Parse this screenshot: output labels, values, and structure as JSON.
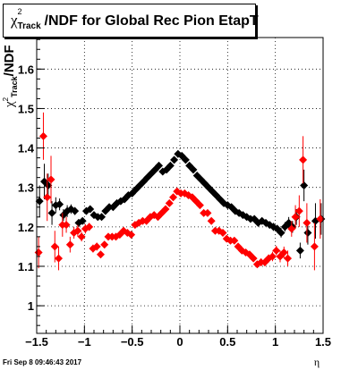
{
  "footer_text": "Fri Sep  8 09:46:43 2017",
  "chart_data": {
    "type": "scatter",
    "title": "/NDF for Global Rec Pion EtapT",
    "title_symbol": "χ",
    "title_superscript": "2",
    "title_subscript": "Track",
    "xlabel": "η",
    "ylabel": "/NDF",
    "ylabel_symbol": "χ",
    "ylabel_superscript": "2",
    "ylabel_subscript": "Track",
    "xlim": [
      -1.5,
      1.5
    ],
    "ylim": [
      0.93,
      1.68
    ],
    "xticks": [
      "−1.5",
      "−1",
      "−0.5",
      "0",
      "0.5",
      "1",
      "1.5"
    ],
    "yticks": [
      "1",
      "1.1",
      "1.2",
      "1.3",
      "1.4",
      "1.5",
      "1.6"
    ],
    "grid": true,
    "series": [
      {
        "color": "#000000",
        "points": [
          [
            -1.47,
            1.265,
            0.04
          ],
          [
            -1.42,
            1.315,
            0.045
          ],
          [
            -1.38,
            1.305,
            0.03
          ],
          [
            -1.34,
            1.235,
            0.03
          ],
          [
            -1.3,
            1.255,
            0.02
          ],
          [
            -1.26,
            1.257,
            0.015
          ],
          [
            -1.22,
            1.23,
            0.015
          ],
          [
            -1.18,
            1.24,
            0.015
          ],
          [
            -1.14,
            1.245,
            0.012
          ],
          [
            -1.1,
            1.24,
            0.01
          ],
          [
            -1.06,
            1.21,
            0.01
          ],
          [
            -1.02,
            1.215,
            0.008
          ],
          [
            -0.98,
            1.24,
            0.008
          ],
          [
            -0.94,
            1.245,
            0.008
          ],
          [
            -0.9,
            1.23,
            0.007
          ],
          [
            -0.86,
            1.225,
            0.007
          ],
          [
            -0.82,
            1.225,
            0.007
          ],
          [
            -0.78,
            1.24,
            0.007
          ],
          [
            -0.74,
            1.25,
            0.006
          ],
          [
            -0.7,
            1.25,
            0.006
          ],
          [
            -0.66,
            1.26,
            0.006
          ],
          [
            -0.62,
            1.265,
            0.006
          ],
          [
            -0.58,
            1.27,
            0.006
          ],
          [
            -0.54,
            1.28,
            0.006
          ],
          [
            -0.5,
            1.285,
            0.006
          ],
          [
            -0.46,
            1.295,
            0.006
          ],
          [
            -0.42,
            1.305,
            0.006
          ],
          [
            -0.38,
            1.315,
            0.006
          ],
          [
            -0.34,
            1.325,
            0.006
          ],
          [
            -0.3,
            1.335,
            0.006
          ],
          [
            -0.26,
            1.345,
            0.006
          ],
          [
            -0.22,
            1.355,
            0.006
          ],
          [
            -0.18,
            1.34,
            0.006
          ],
          [
            -0.14,
            1.345,
            0.006
          ],
          [
            -0.1,
            1.355,
            0.006
          ],
          [
            -0.06,
            1.37,
            0.006
          ],
          [
            -0.02,
            1.385,
            0.006
          ],
          [
            0.02,
            1.38,
            0.006
          ],
          [
            0.06,
            1.37,
            0.006
          ],
          [
            0.1,
            1.355,
            0.006
          ],
          [
            0.14,
            1.345,
            0.006
          ],
          [
            0.18,
            1.33,
            0.006
          ],
          [
            0.22,
            1.32,
            0.006
          ],
          [
            0.26,
            1.31,
            0.006
          ],
          [
            0.3,
            1.3,
            0.006
          ],
          [
            0.34,
            1.29,
            0.006
          ],
          [
            0.38,
            1.28,
            0.006
          ],
          [
            0.42,
            1.27,
            0.006
          ],
          [
            0.46,
            1.26,
            0.006
          ],
          [
            0.5,
            1.255,
            0.006
          ],
          [
            0.54,
            1.25,
            0.006
          ],
          [
            0.58,
            1.24,
            0.006
          ],
          [
            0.62,
            1.235,
            0.007
          ],
          [
            0.66,
            1.23,
            0.007
          ],
          [
            0.7,
            1.225,
            0.007
          ],
          [
            0.74,
            1.22,
            0.007
          ],
          [
            0.78,
            1.22,
            0.007
          ],
          [
            0.82,
            1.21,
            0.008
          ],
          [
            0.86,
            1.215,
            0.008
          ],
          [
            0.9,
            1.21,
            0.008
          ],
          [
            0.94,
            1.205,
            0.008
          ],
          [
            0.98,
            1.2,
            0.01
          ],
          [
            1.02,
            1.195,
            0.01
          ],
          [
            1.06,
            1.185,
            0.012
          ],
          [
            1.1,
            1.2,
            0.012
          ],
          [
            1.14,
            1.21,
            0.015
          ],
          [
            1.18,
            1.2,
            0.015
          ],
          [
            1.22,
            1.225,
            0.02
          ],
          [
            1.26,
            1.14,
            0.02
          ],
          [
            1.3,
            1.305,
            0.04
          ],
          [
            1.34,
            1.185,
            0.03
          ],
          [
            1.42,
            1.215,
            0.045
          ],
          [
            1.48,
            1.22,
            0.04
          ]
        ]
      },
      {
        "color": "#ff0000",
        "points": [
          [
            -1.48,
            1.135,
            0.04
          ],
          [
            -1.43,
            1.43,
            0.06
          ],
          [
            -1.39,
            1.275,
            0.06
          ],
          [
            -1.35,
            1.32,
            0.06
          ],
          [
            -1.31,
            1.15,
            0.04
          ],
          [
            -1.27,
            1.12,
            0.03
          ],
          [
            -1.23,
            1.205,
            0.03
          ],
          [
            -1.19,
            1.205,
            0.02
          ],
          [
            -1.15,
            1.155,
            0.02
          ],
          [
            -1.11,
            1.185,
            0.015
          ],
          [
            -1.07,
            1.19,
            0.015
          ],
          [
            -1.03,
            1.175,
            0.012
          ],
          [
            -0.99,
            1.195,
            0.012
          ],
          [
            -0.95,
            1.2,
            0.01
          ],
          [
            -0.91,
            1.145,
            0.01
          ],
          [
            -0.87,
            1.15,
            0.01
          ],
          [
            -0.83,
            1.13,
            0.008
          ],
          [
            -0.79,
            1.155,
            0.008
          ],
          [
            -0.75,
            1.175,
            0.008
          ],
          [
            -0.71,
            1.175,
            0.007
          ],
          [
            -0.67,
            1.175,
            0.007
          ],
          [
            -0.63,
            1.18,
            0.007
          ],
          [
            -0.59,
            1.19,
            0.007
          ],
          [
            -0.55,
            1.185,
            0.007
          ],
          [
            -0.51,
            1.18,
            0.007
          ],
          [
            -0.47,
            1.205,
            0.006
          ],
          [
            -0.43,
            1.21,
            0.006
          ],
          [
            -0.39,
            1.215,
            0.006
          ],
          [
            -0.35,
            1.215,
            0.006
          ],
          [
            -0.31,
            1.225,
            0.006
          ],
          [
            -0.27,
            1.23,
            0.006
          ],
          [
            -0.23,
            1.225,
            0.006
          ],
          [
            -0.19,
            1.235,
            0.006
          ],
          [
            -0.15,
            1.245,
            0.006
          ],
          [
            -0.11,
            1.26,
            0.006
          ],
          [
            -0.07,
            1.275,
            0.006
          ],
          [
            -0.03,
            1.29,
            0.006
          ],
          [
            0.01,
            1.285,
            0.006
          ],
          [
            0.05,
            1.285,
            0.006
          ],
          [
            0.09,
            1.28,
            0.006
          ],
          [
            0.13,
            1.275,
            0.006
          ],
          [
            0.17,
            1.265,
            0.006
          ],
          [
            0.21,
            1.255,
            0.006
          ],
          [
            0.25,
            1.235,
            0.006
          ],
          [
            0.29,
            1.235,
            0.006
          ],
          [
            0.33,
            1.215,
            0.006
          ],
          [
            0.37,
            1.19,
            0.006
          ],
          [
            0.41,
            1.19,
            0.006
          ],
          [
            0.45,
            1.185,
            0.007
          ],
          [
            0.49,
            1.17,
            0.007
          ],
          [
            0.53,
            1.165,
            0.007
          ],
          [
            0.57,
            1.165,
            0.007
          ],
          [
            0.61,
            1.15,
            0.007
          ],
          [
            0.65,
            1.14,
            0.007
          ],
          [
            0.69,
            1.135,
            0.007
          ],
          [
            0.73,
            1.13,
            0.008
          ],
          [
            0.77,
            1.12,
            0.008
          ],
          [
            0.81,
            1.105,
            0.008
          ],
          [
            0.85,
            1.11,
            0.01
          ],
          [
            0.89,
            1.11,
            0.01
          ],
          [
            0.93,
            1.12,
            0.01
          ],
          [
            0.97,
            1.125,
            0.012
          ],
          [
            1.01,
            1.14,
            0.012
          ],
          [
            1.05,
            1.125,
            0.015
          ],
          [
            1.09,
            1.135,
            0.015
          ],
          [
            1.13,
            1.12,
            0.02
          ],
          [
            1.17,
            1.195,
            0.02
          ],
          [
            1.21,
            1.225,
            0.03
          ],
          [
            1.25,
            1.24,
            0.04
          ],
          [
            1.29,
            1.37,
            0.06
          ],
          [
            1.33,
            1.21,
            0.05
          ],
          [
            1.41,
            1.15,
            0.06
          ],
          [
            1.47,
            1.22,
            0.05
          ]
        ]
      }
    ]
  }
}
